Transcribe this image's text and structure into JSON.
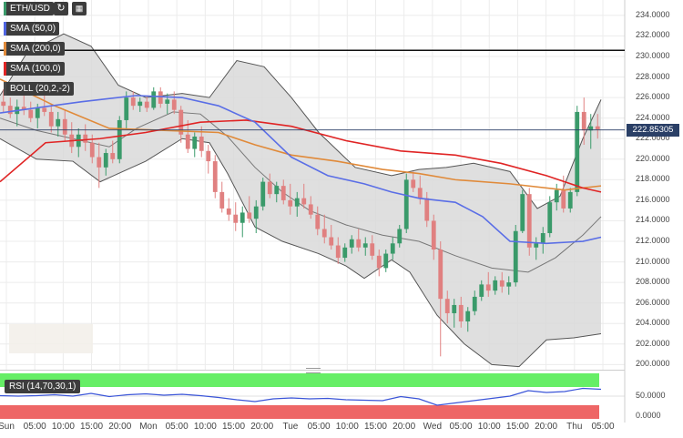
{
  "toolbar": {
    "symbol": "ETH/USD",
    "refresh_icon": "refresh-icon",
    "calendar_icon": "calendar-icon"
  },
  "indicators": [
    {
      "label": "SMA (50,0)",
      "color": "#4e64e0"
    },
    {
      "label": "SMA (200,0)",
      "color": "#e08a3a"
    },
    {
      "label": "SMA (100,0)",
      "color": "#e02424"
    },
    {
      "label": "BOLL (20,2,-2)",
      "color": "#4a4a4a"
    }
  ],
  "price_tag": "222.85305",
  "rsi": {
    "label": "RSI (14,70,30,1)",
    "ticks": [
      "50.0000",
      "0.0000"
    ]
  },
  "colors": {
    "up": "#3a9a6a",
    "down": "#e08080",
    "band_fill": "#d9d9d9",
    "rsi_overbought": "#66ee66",
    "rsi_oversold": "#ee6666"
  },
  "chart_data": {
    "type": "candlestick",
    "y_ticks": [
      "234.0000",
      "232.0000",
      "230.0000",
      "228.0000",
      "226.0000",
      "224.0000",
      "222.0000",
      "220.0000",
      "218.0000",
      "216.0000",
      "214.0000",
      "212.0000",
      "210.0000",
      "208.0000",
      "206.0000",
      "204.0000",
      "202.0000",
      "200.0000"
    ],
    "ylim": [
      200,
      234
    ],
    "x_ticks": [
      "Sun",
      "05:00",
      "10:00",
      "15:00",
      "20:00",
      "Mon",
      "05:00",
      "10:00",
      "15:00",
      "20:00",
      "Tue",
      "05:00",
      "10:00",
      "15:00",
      "20:00",
      "Wed",
      "05:00",
      "10:00",
      "15:00",
      "20:00",
      "Thu",
      "05:00"
    ],
    "resistance_line": 230.6,
    "last_price": 222.85,
    "candles": [
      [
        225.6,
        226.8,
        224.6,
        225.2
      ],
      [
        225.2,
        226.0,
        224.0,
        224.4
      ],
      [
        224.4,
        225.8,
        223.2,
        225.1
      ],
      [
        225.1,
        226.5,
        224.3,
        224.8
      ],
      [
        224.8,
        225.6,
        223.6,
        224.0
      ],
      [
        224.0,
        225.4,
        223.0,
        225.0
      ],
      [
        225.0,
        226.2,
        224.2,
        224.6
      ],
      [
        224.6,
        225.4,
        222.6,
        223.2
      ],
      [
        223.2,
        224.6,
        222.2,
        223.9
      ],
      [
        223.9,
        224.8,
        221.8,
        222.4
      ],
      [
        222.4,
        223.6,
        220.6,
        221.2
      ],
      [
        221.2,
        223.0,
        220.2,
        222.4
      ],
      [
        222.4,
        223.4,
        220.8,
        221.6
      ],
      [
        221.6,
        222.4,
        219.6,
        220.2
      ],
      [
        220.2,
        221.6,
        217.2,
        219.2
      ],
      [
        219.2,
        221.0,
        218.4,
        220.6
      ],
      [
        220.6,
        221.8,
        219.6,
        220.0
      ],
      [
        220.0,
        224.2,
        219.6,
        223.8
      ],
      [
        223.8,
        226.6,
        223.0,
        226.0
      ],
      [
        226.0,
        226.6,
        224.8,
        225.2
      ],
      [
        225.2,
        226.0,
        224.6,
        225.6
      ],
      [
        225.6,
        226.2,
        224.6,
        225.0
      ],
      [
        225.0,
        227.0,
        224.8,
        226.6
      ],
      [
        226.6,
        227.0,
        225.0,
        225.4
      ],
      [
        225.4,
        226.4,
        224.4,
        225.8
      ],
      [
        225.8,
        226.6,
        224.4,
        224.8
      ],
      [
        224.8,
        225.2,
        221.6,
        222.4
      ],
      [
        222.4,
        223.8,
        220.6,
        221.0
      ],
      [
        221.0,
        222.6,
        220.2,
        222.2
      ],
      [
        222.2,
        223.2,
        220.2,
        220.8
      ],
      [
        220.8,
        221.4,
        218.6,
        219.8
      ],
      [
        219.8,
        220.4,
        216.2,
        216.8
      ],
      [
        216.8,
        217.8,
        214.8,
        215.2
      ],
      [
        215.2,
        216.2,
        214.0,
        214.6
      ],
      [
        214.6,
        215.8,
        213.0,
        213.8
      ],
      [
        213.8,
        215.4,
        212.4,
        214.8
      ],
      [
        214.8,
        216.4,
        213.8,
        214.2
      ],
      [
        214.2,
        216.0,
        212.8,
        215.4
      ],
      [
        215.4,
        218.2,
        215.0,
        217.8
      ],
      [
        217.8,
        218.6,
        216.2,
        216.6
      ],
      [
        216.6,
        217.8,
        215.8,
        217.4
      ],
      [
        217.4,
        218.0,
        215.6,
        216.0
      ],
      [
        216.0,
        217.6,
        214.6,
        215.4
      ],
      [
        215.4,
        216.8,
        214.4,
        216.2
      ],
      [
        216.2,
        217.6,
        215.2,
        215.6
      ],
      [
        215.6,
        216.4,
        214.2,
        214.6
      ],
      [
        214.6,
        215.4,
        212.6,
        213.2
      ],
      [
        213.2,
        214.6,
        211.8,
        212.4
      ],
      [
        212.4,
        213.6,
        211.2,
        211.6
      ],
      [
        211.6,
        212.4,
        209.8,
        210.4
      ],
      [
        210.4,
        211.8,
        210.0,
        211.4
      ],
      [
        211.4,
        212.6,
        210.8,
        212.2
      ],
      [
        212.2,
        213.2,
        211.0,
        211.4
      ],
      [
        211.4,
        212.4,
        210.6,
        211.8
      ],
      [
        211.8,
        212.6,
        210.2,
        210.6
      ],
      [
        210.6,
        211.2,
        208.6,
        209.4
      ],
      [
        209.4,
        211.2,
        209.0,
        210.8
      ],
      [
        210.8,
        212.4,
        210.2,
        211.8
      ],
      [
        211.8,
        213.6,
        211.4,
        213.2
      ],
      [
        213.2,
        218.6,
        212.8,
        218.0
      ],
      [
        218.0,
        218.8,
        216.8,
        217.2
      ],
      [
        217.2,
        218.4,
        215.6,
        216.2
      ],
      [
        216.2,
        216.8,
        213.4,
        214.0
      ],
      [
        214.0,
        214.6,
        210.2,
        211.2
      ],
      [
        211.2,
        212.0,
        200.8,
        206.4
      ],
      [
        206.4,
        207.2,
        204.0,
        205.0
      ],
      [
        205.0,
        206.4,
        203.6,
        205.8
      ],
      [
        205.8,
        206.6,
        203.6,
        204.2
      ],
      [
        204.2,
        205.6,
        203.2,
        205.2
      ],
      [
        205.2,
        207.2,
        204.8,
        206.6
      ],
      [
        206.6,
        208.2,
        206.2,
        207.8
      ],
      [
        207.8,
        209.0,
        206.6,
        207.2
      ],
      [
        207.2,
        208.6,
        206.8,
        208.2
      ],
      [
        208.2,
        209.0,
        207.0,
        207.6
      ],
      [
        207.6,
        208.6,
        206.8,
        208.0
      ],
      [
        208.0,
        213.6,
        207.6,
        213.0
      ],
      [
        213.0,
        217.0,
        212.8,
        216.6
      ],
      [
        216.6,
        217.2,
        210.6,
        211.4
      ],
      [
        211.4,
        212.4,
        210.2,
        211.8
      ],
      [
        211.8,
        213.4,
        210.8,
        212.8
      ],
      [
        212.8,
        216.4,
        212.4,
        215.8
      ],
      [
        215.8,
        217.6,
        215.0,
        217.0
      ],
      [
        217.0,
        218.4,
        214.8,
        215.2
      ],
      [
        215.2,
        217.2,
        214.8,
        216.8
      ],
      [
        216.8,
        225.2,
        216.4,
        224.6
      ],
      [
        224.6,
        226.0,
        221.4,
        222.8
      ],
      [
        222.8,
        224.4,
        221.0,
        223.2
      ],
      [
        223.2,
        224.4,
        222.0,
        222.9
      ]
    ],
    "sma50": [
      [
        0,
        224.5
      ],
      [
        40,
        225.0
      ],
      [
        90,
        225.6
      ],
      [
        150,
        226.2
      ],
      [
        200,
        226.0
      ],
      [
        240,
        225.2
      ],
      [
        280,
        223.6
      ],
      [
        320,
        220.2
      ],
      [
        360,
        218.4
      ],
      [
        400,
        217.6
      ],
      [
        430,
        216.8
      ],
      [
        460,
        216.2
      ],
      [
        500,
        215.8
      ],
      [
        530,
        214.4
      ],
      [
        560,
        212.0
      ],
      [
        600,
        211.8
      ],
      [
        640,
        212.0
      ],
      [
        660,
        212.4
      ]
    ],
    "sma200": [
      [
        0,
        227.8
      ],
      [
        60,
        225.2
      ],
      [
        120,
        223.0
      ],
      [
        180,
        222.8
      ],
      [
        240,
        222.6
      ],
      [
        280,
        221.4
      ],
      [
        320,
        220.4
      ],
      [
        370,
        219.8
      ],
      [
        420,
        219.0
      ],
      [
        460,
        218.6
      ],
      [
        500,
        218.0
      ],
      [
        560,
        217.6
      ],
      [
        620,
        217.0
      ],
      [
        660,
        217.4
      ]
    ],
    "sma100": [
      [
        0,
        217.8
      ],
      [
        50,
        221.6
      ],
      [
        110,
        222.0
      ],
      [
        160,
        222.6
      ],
      [
        220,
        223.6
      ],
      [
        270,
        223.8
      ],
      [
        320,
        223.2
      ],
      [
        380,
        221.8
      ],
      [
        440,
        220.8
      ],
      [
        500,
        220.4
      ],
      [
        550,
        219.6
      ],
      [
        600,
        218.4
      ],
      [
        640,
        217.2
      ],
      [
        660,
        216.8
      ]
    ],
    "boll_upper": [
      [
        0,
        226.2
      ],
      [
        30,
        230.4
      ],
      [
        70,
        232.2
      ],
      [
        100,
        231.0
      ],
      [
        130,
        227.2
      ],
      [
        160,
        226.0
      ],
      [
        200,
        226.4
      ],
      [
        230,
        226.0
      ],
      [
        260,
        229.6
      ],
      [
        290,
        229.0
      ],
      [
        320,
        226.0
      ],
      [
        350,
        222.6
      ],
      [
        390,
        219.2
      ],
      [
        430,
        218.4
      ],
      [
        460,
        219.0
      ],
      [
        490,
        219.2
      ],
      [
        520,
        219.6
      ],
      [
        560,
        218.8
      ],
      [
        590,
        215.2
      ],
      [
        615,
        216.4
      ],
      [
        640,
        222.0
      ],
      [
        660,
        225.8
      ]
    ],
    "boll_middle": [
      [
        0,
        224.0
      ],
      [
        40,
        222.8
      ],
      [
        80,
        222.0
      ],
      [
        120,
        221.2
      ],
      [
        150,
        223.0
      ],
      [
        190,
        224.6
      ],
      [
        220,
        224.4
      ],
      [
        250,
        222.2
      ],
      [
        280,
        219.2
      ],
      [
        310,
        216.8
      ],
      [
        340,
        215.0
      ],
      [
        380,
        213.6
      ],
      [
        420,
        212.6
      ],
      [
        460,
        212.0
      ],
      [
        500,
        210.6
      ],
      [
        540,
        209.4
      ],
      [
        580,
        209.0
      ],
      [
        610,
        210.4
      ],
      [
        640,
        212.6
      ],
      [
        660,
        214.4
      ]
    ],
    "boll_lower": [
      [
        0,
        222.0
      ],
      [
        40,
        220.0
      ],
      [
        80,
        219.8
      ],
      [
        110,
        217.8
      ],
      [
        130,
        218.6
      ],
      [
        160,
        219.8
      ],
      [
        200,
        222.0
      ],
      [
        230,
        221.6
      ],
      [
        250,
        218.6
      ],
      [
        280,
        213.4
      ],
      [
        310,
        212.0
      ],
      [
        350,
        210.8
      ],
      [
        380,
        209.6
      ],
      [
        400,
        208.4
      ],
      [
        430,
        210.2
      ],
      [
        450,
        209.0
      ],
      [
        480,
        204.8
      ],
      [
        510,
        202.0
      ],
      [
        540,
        200.0
      ],
      [
        570,
        199.8
      ],
      [
        600,
        202.4
      ],
      [
        630,
        202.6
      ],
      [
        660,
        203.0
      ]
    ],
    "rsi": [
      [
        0,
        51
      ],
      [
        20,
        50
      ],
      [
        40,
        51
      ],
      [
        60,
        53
      ],
      [
        80,
        50
      ],
      [
        100,
        56
      ],
      [
        120,
        49
      ],
      [
        140,
        53
      ],
      [
        160,
        55
      ],
      [
        180,
        52
      ],
      [
        200,
        54
      ],
      [
        220,
        51
      ],
      [
        240,
        47
      ],
      [
        260,
        42
      ],
      [
        280,
        38
      ],
      [
        300,
        44
      ],
      [
        320,
        46
      ],
      [
        340,
        44
      ],
      [
        360,
        45
      ],
      [
        380,
        42
      ],
      [
        400,
        41
      ],
      [
        420,
        40
      ],
      [
        440,
        49
      ],
      [
        460,
        44
      ],
      [
        480,
        30
      ],
      [
        500,
        35
      ],
      [
        520,
        40
      ],
      [
        540,
        45
      ],
      [
        560,
        50
      ],
      [
        580,
        62
      ],
      [
        600,
        58
      ],
      [
        620,
        60
      ],
      [
        640,
        67
      ],
      [
        660,
        65
      ]
    ]
  }
}
